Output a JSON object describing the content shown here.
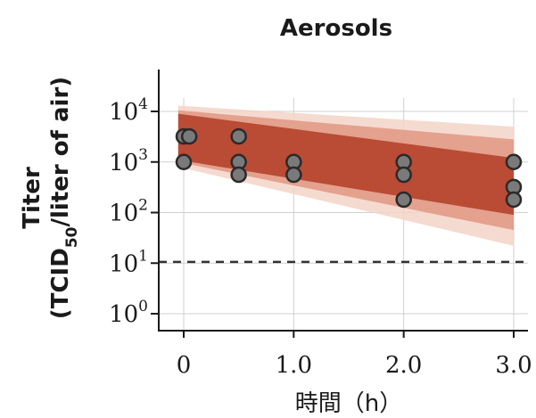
{
  "chart_data": {
    "type": "scatter",
    "title": "Aerosols",
    "ylabel_line1": "Titer",
    "ylabel_line2_prefix": "(TCID",
    "ylabel_line2_sub": "50",
    "ylabel_line2_suffix": "/liter of air)",
    "xlabel": "時間（h）",
    "y_scale": "log10",
    "xlim": [
      -0.1,
      3.05
    ],
    "ylim": [
      0.5,
      200000
    ],
    "x_ticks": [
      {
        "value": 0,
        "label": "0"
      },
      {
        "value": 1,
        "label": "1.0"
      },
      {
        "value": 2,
        "label": "2.0"
      },
      {
        "value": 3,
        "label": "3.0"
      }
    ],
    "y_ticks": [
      {
        "value": 1,
        "base": "10",
        "exp": "0"
      },
      {
        "value": 10,
        "base": "10",
        "exp": "1"
      },
      {
        "value": 100,
        "base": "10",
        "exp": "2"
      },
      {
        "value": 1000,
        "base": "10",
        "exp": "3"
      },
      {
        "value": 10000,
        "base": "10",
        "exp": "4"
      }
    ],
    "grid": true,
    "detection_limit": 10.6,
    "points": [
      {
        "x": 0.0,
        "y": 3200
      },
      {
        "x": 0.05,
        "y": 3200
      },
      {
        "x": 0.0,
        "y": 1000
      },
      {
        "x": 0.5,
        "y": 3200
      },
      {
        "x": 0.5,
        "y": 1000
      },
      {
        "x": 0.5,
        "y": 560
      },
      {
        "x": 1.0,
        "y": 1000
      },
      {
        "x": 1.0,
        "y": 560
      },
      {
        "x": 2.0,
        "y": 1000
      },
      {
        "x": 2.0,
        "y": 560
      },
      {
        "x": 2.0,
        "y": 180
      },
      {
        "x": 3.0,
        "y": 1000
      },
      {
        "x": 3.0,
        "y": 320
      },
      {
        "x": 3.0,
        "y": 180
      }
    ],
    "bands": [
      {
        "x_start": -0.05,
        "x_end": 3.0,
        "low_start": 800,
        "high_start": 13000,
        "low_end": 22,
        "high_end": 5000
      },
      {
        "x_start": -0.05,
        "x_end": 3.0,
        "low_start": 1000,
        "high_start": 10500,
        "low_end": 45,
        "high_end": 2800
      },
      {
        "x_start": -0.05,
        "x_end": 3.0,
        "low_start": 1100,
        "high_start": 9000,
        "low_end": 90,
        "high_end": 1200
      }
    ],
    "colors": {
      "band_outer": "#f3d3c8",
      "band_middle": "#e19a86",
      "band_inner": "#b5412b",
      "point_fill": "#7a7a7a",
      "point_stroke": "#2a2a2a",
      "grid": "#d0d0d0",
      "axis": "#1a1a1a"
    }
  }
}
